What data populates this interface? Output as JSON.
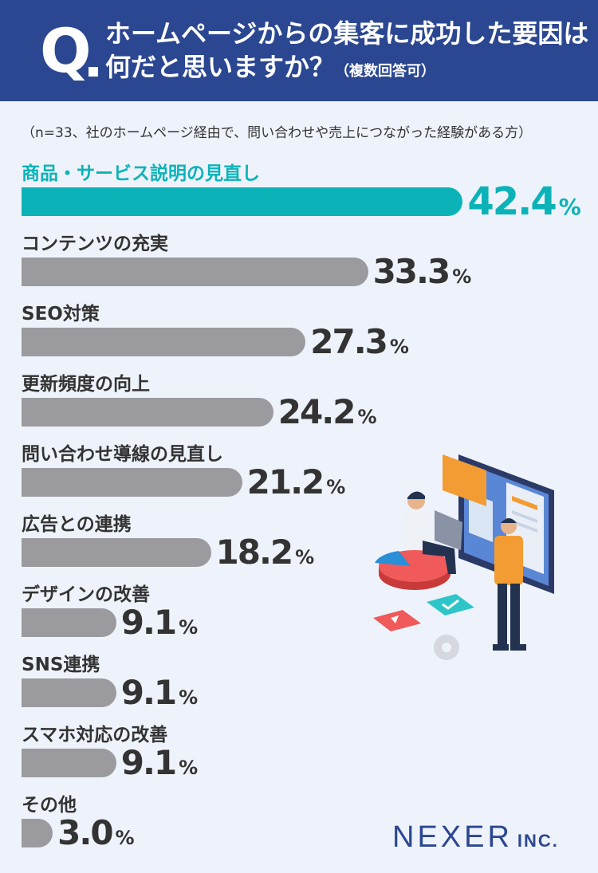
{
  "header": {
    "q": "Q",
    "line1": "ホームページからの集客に成功した要因は",
    "line2": "何だと思いますか？",
    "note": "（複数回答可）"
  },
  "survey_note": "（n=33、社のホームページ経由で、問い合わせや売上につながった経験がある方）",
  "logo": {
    "name": "NEXER",
    "suffix": "INC."
  },
  "percent_sign": "%",
  "colors": {
    "header": "#2b4791",
    "highlight": "#0bb3b8",
    "bar": "#9b9b9f",
    "background": "#eef3fb"
  },
  "chart_data": {
    "type": "bar",
    "orientation": "horizontal",
    "categories": [
      "商品・サービス説明の見直し",
      "コンテンツの充実",
      "SEO対策",
      "更新頻度の向上",
      "問い合わせ導線の見直し",
      "広告との連携",
      "デザインの改善",
      "SNS連携",
      "スマホ対応の改善",
      "その他"
    ],
    "values": [
      42.4,
      33.3,
      27.3,
      24.2,
      21.2,
      18.2,
      9.1,
      9.1,
      9.1,
      3.0
    ],
    "value_labels": [
      "42.4",
      "33.3",
      "27.3",
      "24.2",
      "21.2",
      "18.2",
      "9.1",
      "9.1",
      "9.1",
      "3.0"
    ],
    "unit": "%",
    "highlight_index": 0
  }
}
